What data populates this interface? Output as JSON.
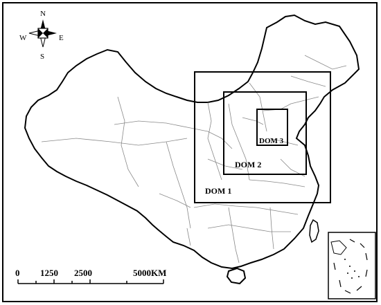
{
  "map": {
    "compass": {
      "north": "N",
      "south": "S",
      "east": "E",
      "west": "W"
    },
    "domains": [
      {
        "label": "DOM 1"
      },
      {
        "label": "DOM 2"
      },
      {
        "label": "DOM 3"
      }
    ],
    "scale_bar": {
      "ticks": [
        "0",
        "1250",
        "2500",
        "5000KM"
      ]
    },
    "colors": {
      "outline": "#000000",
      "province_border": "#888888",
      "background": "#ffffff"
    }
  }
}
